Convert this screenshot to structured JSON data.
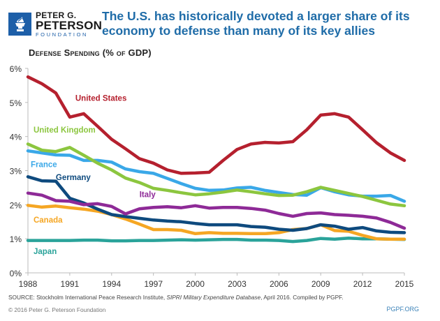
{
  "logo": {
    "line1": "PETER G.",
    "line2": "PETERSON",
    "line3": "FOUNDATION",
    "icon": "torch-icon",
    "brand_color": "#1d5fa8"
  },
  "headline": "The U.S. has historically devoted a larger share of its economy to defense than many of its key allies",
  "footer": {
    "source_prefix": "SOURCE: Stockholm International Peace Research Institute, ",
    "source_italic": "SIPRI Military Expenditure Database",
    "source_suffix": ", April 2016. Compiled by PGPF.",
    "copyright": "© 2016 Peter G. Peterson Foundation",
    "site": "PGPF.ORG"
  },
  "chart_data": {
    "type": "line",
    "title": "Defense Spending (% of GDP)",
    "xlabel": "",
    "ylabel": "",
    "x": [
      1988,
      1989,
      1990,
      1991,
      1992,
      1993,
      1994,
      1995,
      1996,
      1997,
      1998,
      1999,
      2000,
      2001,
      2002,
      2003,
      2004,
      2005,
      2006,
      2007,
      2008,
      2009,
      2010,
      2011,
      2012,
      2013,
      2014,
      2015
    ],
    "xticks": [
      "1988",
      "1991",
      "1994",
      "1997",
      "2000",
      "2003",
      "2006",
      "2009",
      "2012",
      "2015"
    ],
    "xtick_values": [
      1988,
      1991,
      1994,
      1997,
      2000,
      2003,
      2006,
      2009,
      2012,
      2015
    ],
    "yticks": [
      "0%",
      "1%",
      "2%",
      "3%",
      "4%",
      "5%",
      "6%"
    ],
    "ytick_values": [
      0,
      1,
      2,
      3,
      4,
      5,
      6
    ],
    "xlim": [
      1988,
      2015
    ],
    "ylim": [
      0,
      6
    ],
    "grid": false,
    "legend": "inline labels",
    "series": [
      {
        "name": "United States",
        "color": "#b5202e",
        "values": [
          5.75,
          5.55,
          5.28,
          4.57,
          4.67,
          4.3,
          3.92,
          3.64,
          3.35,
          3.22,
          3.02,
          2.92,
          2.93,
          2.95,
          3.3,
          3.62,
          3.78,
          3.83,
          3.81,
          3.85,
          4.2,
          4.63,
          4.67,
          4.57,
          4.2,
          3.82,
          3.52,
          3.3
        ]
      },
      {
        "name": "United Kingdom",
        "color": "#8cc63f",
        "values": [
          3.78,
          3.6,
          3.56,
          3.68,
          3.45,
          3.22,
          3.02,
          2.78,
          2.65,
          2.48,
          2.42,
          2.35,
          2.29,
          2.32,
          2.37,
          2.43,
          2.38,
          2.32,
          2.27,
          2.28,
          2.38,
          2.51,
          2.42,
          2.33,
          2.24,
          2.13,
          2.02,
          1.97
        ]
      },
      {
        "name": "France",
        "color": "#3aa8e8",
        "values": [
          3.58,
          3.52,
          3.46,
          3.45,
          3.3,
          3.3,
          3.25,
          3.05,
          2.97,
          2.92,
          2.77,
          2.62,
          2.48,
          2.42,
          2.43,
          2.49,
          2.51,
          2.42,
          2.36,
          2.3,
          2.28,
          2.5,
          2.38,
          2.29,
          2.25,
          2.25,
          2.27,
          2.1
        ]
      },
      {
        "name": "Germany",
        "color": "#0e4a7e",
        "values": [
          2.82,
          2.7,
          2.69,
          2.19,
          2.05,
          1.87,
          1.71,
          1.65,
          1.6,
          1.55,
          1.52,
          1.5,
          1.45,
          1.41,
          1.41,
          1.41,
          1.36,
          1.34,
          1.28,
          1.25,
          1.3,
          1.41,
          1.37,
          1.28,
          1.33,
          1.23,
          1.19,
          1.18
        ]
      },
      {
        "name": "Italy",
        "color": "#8e2a97",
        "values": [
          2.34,
          2.28,
          2.12,
          2.1,
          2.0,
          2.03,
          1.95,
          1.73,
          1.88,
          1.92,
          1.94,
          1.91,
          1.97,
          1.9,
          1.92,
          1.92,
          1.89,
          1.84,
          1.74,
          1.66,
          1.74,
          1.76,
          1.71,
          1.69,
          1.66,
          1.61,
          1.48,
          1.31
        ]
      },
      {
        "name": "Canada",
        "color": "#f5a623",
        "values": [
          1.98,
          1.93,
          1.96,
          1.91,
          1.87,
          1.81,
          1.71,
          1.58,
          1.43,
          1.27,
          1.27,
          1.25,
          1.15,
          1.18,
          1.16,
          1.16,
          1.15,
          1.15,
          1.18,
          1.27,
          1.3,
          1.41,
          1.24,
          1.22,
          1.1,
          1.0,
          0.99,
          0.99
        ]
      },
      {
        "name": "Japan",
        "color": "#2aa39a",
        "values": [
          0.95,
          0.95,
          0.95,
          0.95,
          0.96,
          0.96,
          0.94,
          0.94,
          0.95,
          0.95,
          0.96,
          0.97,
          0.96,
          0.97,
          0.98,
          0.98,
          0.96,
          0.96,
          0.95,
          0.92,
          0.95,
          1.01,
          0.99,
          1.02,
          1.0,
          1.0,
          0.99,
          0.98
        ]
      }
    ],
    "annotations": [
      {
        "text": "United States",
        "series": "United States"
      },
      {
        "text": "United Kingdom",
        "series": "United Kingdom"
      },
      {
        "text": "France",
        "series": "France"
      },
      {
        "text": "Germany",
        "series": "Germany"
      },
      {
        "text": "Italy",
        "series": "Italy"
      },
      {
        "text": "Canada",
        "series": "Canada"
      },
      {
        "text": "Japan",
        "series": "Japan"
      }
    ]
  }
}
